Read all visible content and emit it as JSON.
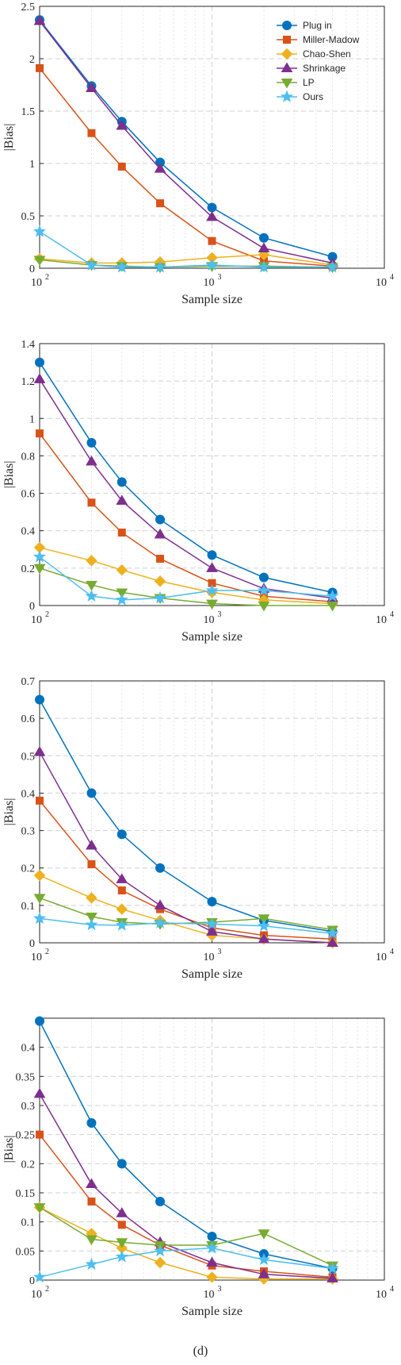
{
  "caption": "(d)",
  "colors": {
    "plug_in": "#0072BD",
    "miller_madow": "#D95319",
    "chao_shen": "#EDB120",
    "shrinkage": "#7E2F8E",
    "lp": "#77AC30",
    "ours": "#4DBEEE"
  },
  "legend": {
    "placement": "top-right (first panel only)",
    "entries": [
      {
        "key": "plug_in",
        "label": "Plug in",
        "marker": "circle"
      },
      {
        "key": "miller_madow",
        "label": "Miller-Madow",
        "marker": "square"
      },
      {
        "key": "chao_shen",
        "label": "Chao-Shen",
        "marker": "diamond"
      },
      {
        "key": "shrinkage",
        "label": "Shrinkage",
        "marker": "triangle-up"
      },
      {
        "key": "lp",
        "label": "LP",
        "marker": "triangle-down"
      },
      {
        "key": "ours",
        "label": "Ours",
        "marker": "star"
      }
    ]
  },
  "chart_data": [
    {
      "type": "line",
      "xscale": "log",
      "xlim": [
        100,
        10000
      ],
      "ylim": [
        0,
        2.5
      ],
      "xticks": [
        100,
        1000,
        10000
      ],
      "xtick_labels": [
        "10",
        "10",
        "10"
      ],
      "xtick_exponents": [
        "2",
        "3",
        "4"
      ],
      "yticks": [
        0,
        0.5,
        1,
        1.5,
        2,
        2.5
      ],
      "ytick_labels": [
        "0",
        "0.5",
        "1",
        "1.5",
        "2",
        "2.5"
      ],
      "xlabel": "Sample size",
      "ylabel": "|Bias|",
      "grid": true,
      "x": [
        100,
        200,
        300,
        500,
        1000,
        2000,
        5000
      ],
      "series": [
        {
          "key": "plug_in",
          "values": [
            2.37,
            1.74,
            1.4,
            1.01,
            0.58,
            0.29,
            0.11
          ]
        },
        {
          "key": "miller_madow",
          "values": [
            1.91,
            1.29,
            0.97,
            0.62,
            0.26,
            0.07,
            0.02
          ]
        },
        {
          "key": "chao_shen",
          "values": [
            0.09,
            0.05,
            0.05,
            0.06,
            0.1,
            0.13,
            0.03
          ]
        },
        {
          "key": "shrinkage",
          "values": [
            2.36,
            1.72,
            1.36,
            0.95,
            0.49,
            0.19,
            0.05
          ]
        },
        {
          "key": "lp",
          "values": [
            0.08,
            0.03,
            0.02,
            0.01,
            0.02,
            0.02,
            0.01
          ]
        },
        {
          "key": "ours",
          "values": [
            0.35,
            0.03,
            0.01,
            0.01,
            0.03,
            0.01,
            0.01
          ]
        }
      ]
    },
    {
      "type": "line",
      "xscale": "log",
      "xlim": [
        100,
        10000
      ],
      "ylim": [
        0,
        1.4
      ],
      "xticks": [
        100,
        1000,
        10000
      ],
      "xtick_labels": [
        "10",
        "10",
        "10"
      ],
      "xtick_exponents": [
        "2",
        "3",
        "4"
      ],
      "yticks": [
        0,
        0.2,
        0.4,
        0.6,
        0.8,
        1,
        1.2,
        1.4
      ],
      "ytick_labels": [
        "0",
        "0.2",
        "0.4",
        "0.6",
        "0.8",
        "1",
        "1.2",
        "1.4"
      ],
      "xlabel": "Sample size",
      "ylabel": "|Bias|",
      "grid": true,
      "x": [
        100,
        200,
        300,
        500,
        1000,
        2000,
        5000
      ],
      "series": [
        {
          "key": "plug_in",
          "values": [
            1.3,
            0.87,
            0.66,
            0.46,
            0.27,
            0.15,
            0.07
          ]
        },
        {
          "key": "miller_madow",
          "values": [
            0.92,
            0.55,
            0.39,
            0.25,
            0.12,
            0.05,
            0.02
          ]
        },
        {
          "key": "chao_shen",
          "values": [
            0.31,
            0.24,
            0.19,
            0.13,
            0.07,
            0.03,
            0.01
          ]
        },
        {
          "key": "shrinkage",
          "values": [
            1.21,
            0.77,
            0.56,
            0.38,
            0.2,
            0.09,
            0.04
          ]
        },
        {
          "key": "lp",
          "values": [
            0.2,
            0.11,
            0.07,
            0.04,
            0.01,
            0.0,
            0.0
          ]
        },
        {
          "key": "ours",
          "values": [
            0.26,
            0.05,
            0.03,
            0.04,
            0.08,
            0.08,
            0.05
          ]
        }
      ]
    },
    {
      "type": "line",
      "xscale": "log",
      "xlim": [
        100,
        10000
      ],
      "ylim": [
        0,
        0.7
      ],
      "xticks": [
        100,
        1000,
        10000
      ],
      "xtick_labels": [
        "10",
        "10",
        "10"
      ],
      "xtick_exponents": [
        "2",
        "3",
        "4"
      ],
      "yticks": [
        0,
        0.1,
        0.2,
        0.3,
        0.4,
        0.5,
        0.6,
        0.7
      ],
      "ytick_labels": [
        "0",
        "0.1",
        "0.2",
        "0.3",
        "0.4",
        "0.5",
        "0.6",
        "0.7"
      ],
      "xlabel": "Sample size",
      "ylabel": "|Bias|",
      "grid": true,
      "x": [
        100,
        200,
        300,
        500,
        1000,
        2000,
        5000
      ],
      "series": [
        {
          "key": "plug_in",
          "values": [
            0.65,
            0.4,
            0.29,
            0.2,
            0.11,
            0.06,
            0.03
          ]
        },
        {
          "key": "miller_madow",
          "values": [
            0.38,
            0.21,
            0.14,
            0.09,
            0.04,
            0.02,
            0.01
          ]
        },
        {
          "key": "chao_shen",
          "values": [
            0.18,
            0.12,
            0.09,
            0.06,
            0.02,
            0.01,
            0.0
          ]
        },
        {
          "key": "shrinkage",
          "values": [
            0.51,
            0.26,
            0.17,
            0.1,
            0.03,
            0.01,
            0.0
          ]
        },
        {
          "key": "lp",
          "values": [
            0.12,
            0.07,
            0.055,
            0.05,
            0.055,
            0.065,
            0.035
          ]
        },
        {
          "key": "ours",
          "values": [
            0.065,
            0.048,
            0.047,
            0.053,
            0.05,
            0.045,
            0.025
          ]
        }
      ]
    },
    {
      "type": "line",
      "xscale": "log",
      "xlim": [
        100,
        10000
      ],
      "ylim": [
        0,
        0.45
      ],
      "xticks": [
        100,
        1000,
        10000
      ],
      "xtick_labels": [
        "10",
        "10",
        "10"
      ],
      "xtick_exponents": [
        "2",
        "3",
        "4"
      ],
      "yticks": [
        0,
        0.05,
        0.1,
        0.15,
        0.2,
        0.25,
        0.3,
        0.35,
        0.4
      ],
      "ytick_labels": [
        "0",
        "0.05",
        "0.1",
        "0.15",
        "0.2",
        "0.25",
        "0.3",
        "0.35",
        "0.4"
      ],
      "xlabel": "Sample size",
      "ylabel": "|Bias|",
      "grid": true,
      "x": [
        100,
        200,
        300,
        500,
        1000,
        2000,
        5000
      ],
      "series": [
        {
          "key": "plug_in",
          "values": [
            0.445,
            0.27,
            0.2,
            0.135,
            0.075,
            0.045,
            0.02
          ]
        },
        {
          "key": "miller_madow",
          "values": [
            0.25,
            0.135,
            0.095,
            0.06,
            0.025,
            0.015,
            0.005
          ]
        },
        {
          "key": "chao_shen",
          "values": [
            0.125,
            0.08,
            0.055,
            0.03,
            0.005,
            0.002,
            0.002
          ]
        },
        {
          "key": "shrinkage",
          "values": [
            0.32,
            0.165,
            0.115,
            0.065,
            0.03,
            0.01,
            0.003
          ]
        },
        {
          "key": "lp",
          "values": [
            0.125,
            0.07,
            0.065,
            0.06,
            0.06,
            0.08,
            0.025
          ]
        },
        {
          "key": "ours",
          "values": [
            0.005,
            0.027,
            0.04,
            0.05,
            0.055,
            0.035,
            0.02
          ]
        }
      ]
    }
  ]
}
